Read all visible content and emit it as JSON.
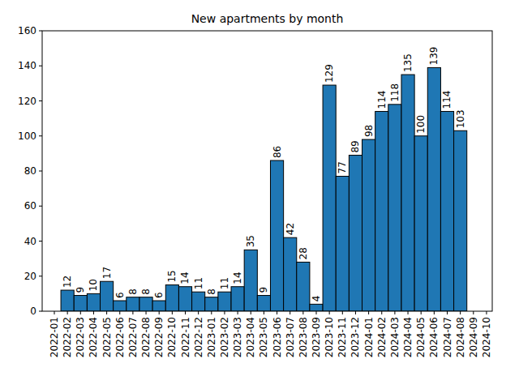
{
  "chart_data": {
    "type": "bar",
    "title": "New apartments by month",
    "categories": [
      "2022-01",
      "2022-02",
      "2022-03",
      "2022-04",
      "2022-05",
      "2022-06",
      "2022-07",
      "2022-08",
      "2022-09",
      "2022-10",
      "2022-11",
      "2022-12",
      "2023-01",
      "2023-02",
      "2023-03",
      "2023-04",
      "2023-05",
      "2023-06",
      "2023-07",
      "2023-08",
      "2023-09",
      "2023-10",
      "2023-11",
      "2023-12",
      "2024-01",
      "2024-02",
      "2024-03",
      "2024-04",
      "2024-05",
      "2024-06",
      "2024-07",
      "2024-08",
      "2024-09",
      "2024-10"
    ],
    "values": [
      null,
      12,
      9,
      10,
      17,
      6,
      8,
      8,
      6,
      15,
      14,
      11,
      8,
      11,
      14,
      35,
      9,
      86,
      42,
      28,
      4,
      129,
      77,
      89,
      98,
      114,
      118,
      135,
      100,
      139,
      114,
      103,
      null,
      null
    ],
    "color": "#1f77b4",
    "ylim": [
      0,
      160
    ],
    "yticks": [
      0,
      20,
      40,
      60,
      80,
      100,
      120,
      140,
      160
    ],
    "data_labels": true,
    "grid": false
  }
}
